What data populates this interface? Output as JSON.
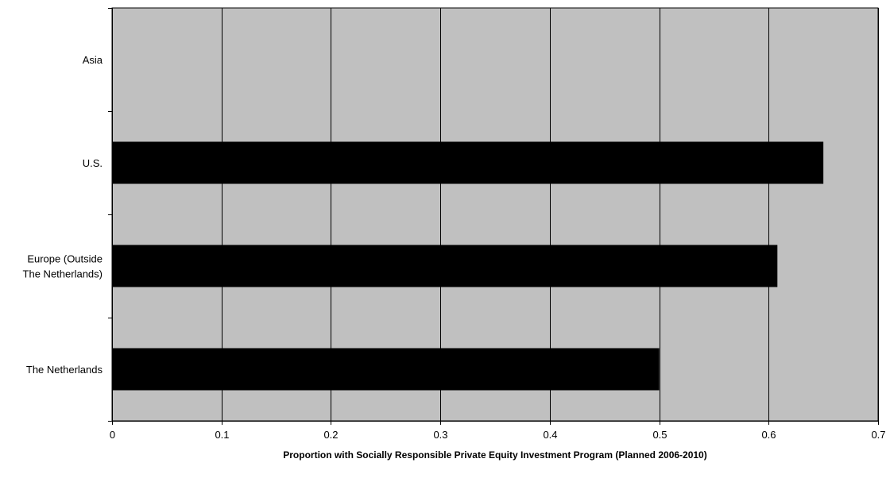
{
  "chart_data": {
    "type": "bar",
    "orientation": "horizontal",
    "title": "",
    "xlabel": "Proportion with Socially Responsible Private Equity Investment Program (Planned 2006-2010)",
    "ylabel": "",
    "categories": [
      "Asia",
      "U.S.",
      "Europe (Outside The Netherlands)",
      "The Netherlands"
    ],
    "category_label_lines": [
      [
        "Asia"
      ],
      [
        "U.S."
      ],
      [
        "Europe (Outside",
        "The Netherlands)"
      ],
      [
        "The Netherlands"
      ]
    ],
    "values": [
      0,
      0.65,
      0.608,
      0.5
    ],
    "xlim": [
      0,
      0.7
    ],
    "x_ticks": [
      0,
      0.1,
      0.2,
      0.3,
      0.4,
      0.5,
      0.6,
      0.7
    ],
    "x_tick_labels": [
      "0",
      "0.1",
      "0.2",
      "0.3",
      "0.4",
      "0.5",
      "0.6",
      "0.7"
    ],
    "grid": "vertical",
    "legend": "none",
    "colors": {
      "plot_background": "#c0c0c0",
      "bar": "#000000",
      "gridline": "#000000",
      "axis": "#000000"
    }
  }
}
